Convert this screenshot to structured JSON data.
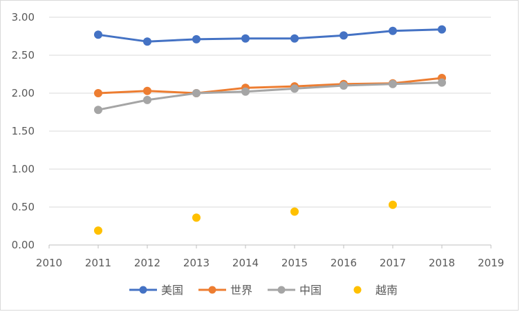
{
  "chart_data": {
    "type": "line",
    "title": "",
    "xlabel": "",
    "ylabel": "",
    "x_ticks": [
      "2010",
      "2011",
      "2012",
      "2013",
      "2014",
      "2015",
      "2016",
      "2017",
      "2018",
      "2019"
    ],
    "y_ticks": [
      "0.00",
      "0.50",
      "1.00",
      "1.50",
      "2.00",
      "2.50",
      "3.00"
    ],
    "xlim": [
      2010,
      2019
    ],
    "ylim": [
      0,
      3
    ],
    "grid": "horizontal",
    "legend_position": "bottom",
    "series": [
      {
        "name": "美国",
        "color": "#4472C4",
        "line": true,
        "x": [
          2011,
          2012,
          2013,
          2014,
          2015,
          2016,
          2017,
          2018
        ],
        "values": [
          2.77,
          2.68,
          2.71,
          2.72,
          2.72,
          2.76,
          2.82,
          2.84
        ]
      },
      {
        "name": "世界",
        "color": "#ED7D31",
        "line": true,
        "x": [
          2011,
          2012,
          2013,
          2014,
          2015,
          2016,
          2017,
          2018
        ],
        "values": [
          2.0,
          2.03,
          2.0,
          2.07,
          2.09,
          2.12,
          2.13,
          2.2
        ]
      },
      {
        "name": "中国",
        "color": "#A5A5A5",
        "line": true,
        "x": [
          2011,
          2012,
          2013,
          2014,
          2015,
          2016,
          2017,
          2018
        ],
        "values": [
          1.78,
          1.91,
          2.0,
          2.02,
          2.06,
          2.1,
          2.12,
          2.14
        ]
      },
      {
        "name": "越南",
        "color": "#FFC000",
        "line": false,
        "x": [
          2011,
          2013,
          2015,
          2017
        ],
        "values": [
          0.19,
          0.36,
          0.44,
          0.53
        ]
      }
    ]
  }
}
